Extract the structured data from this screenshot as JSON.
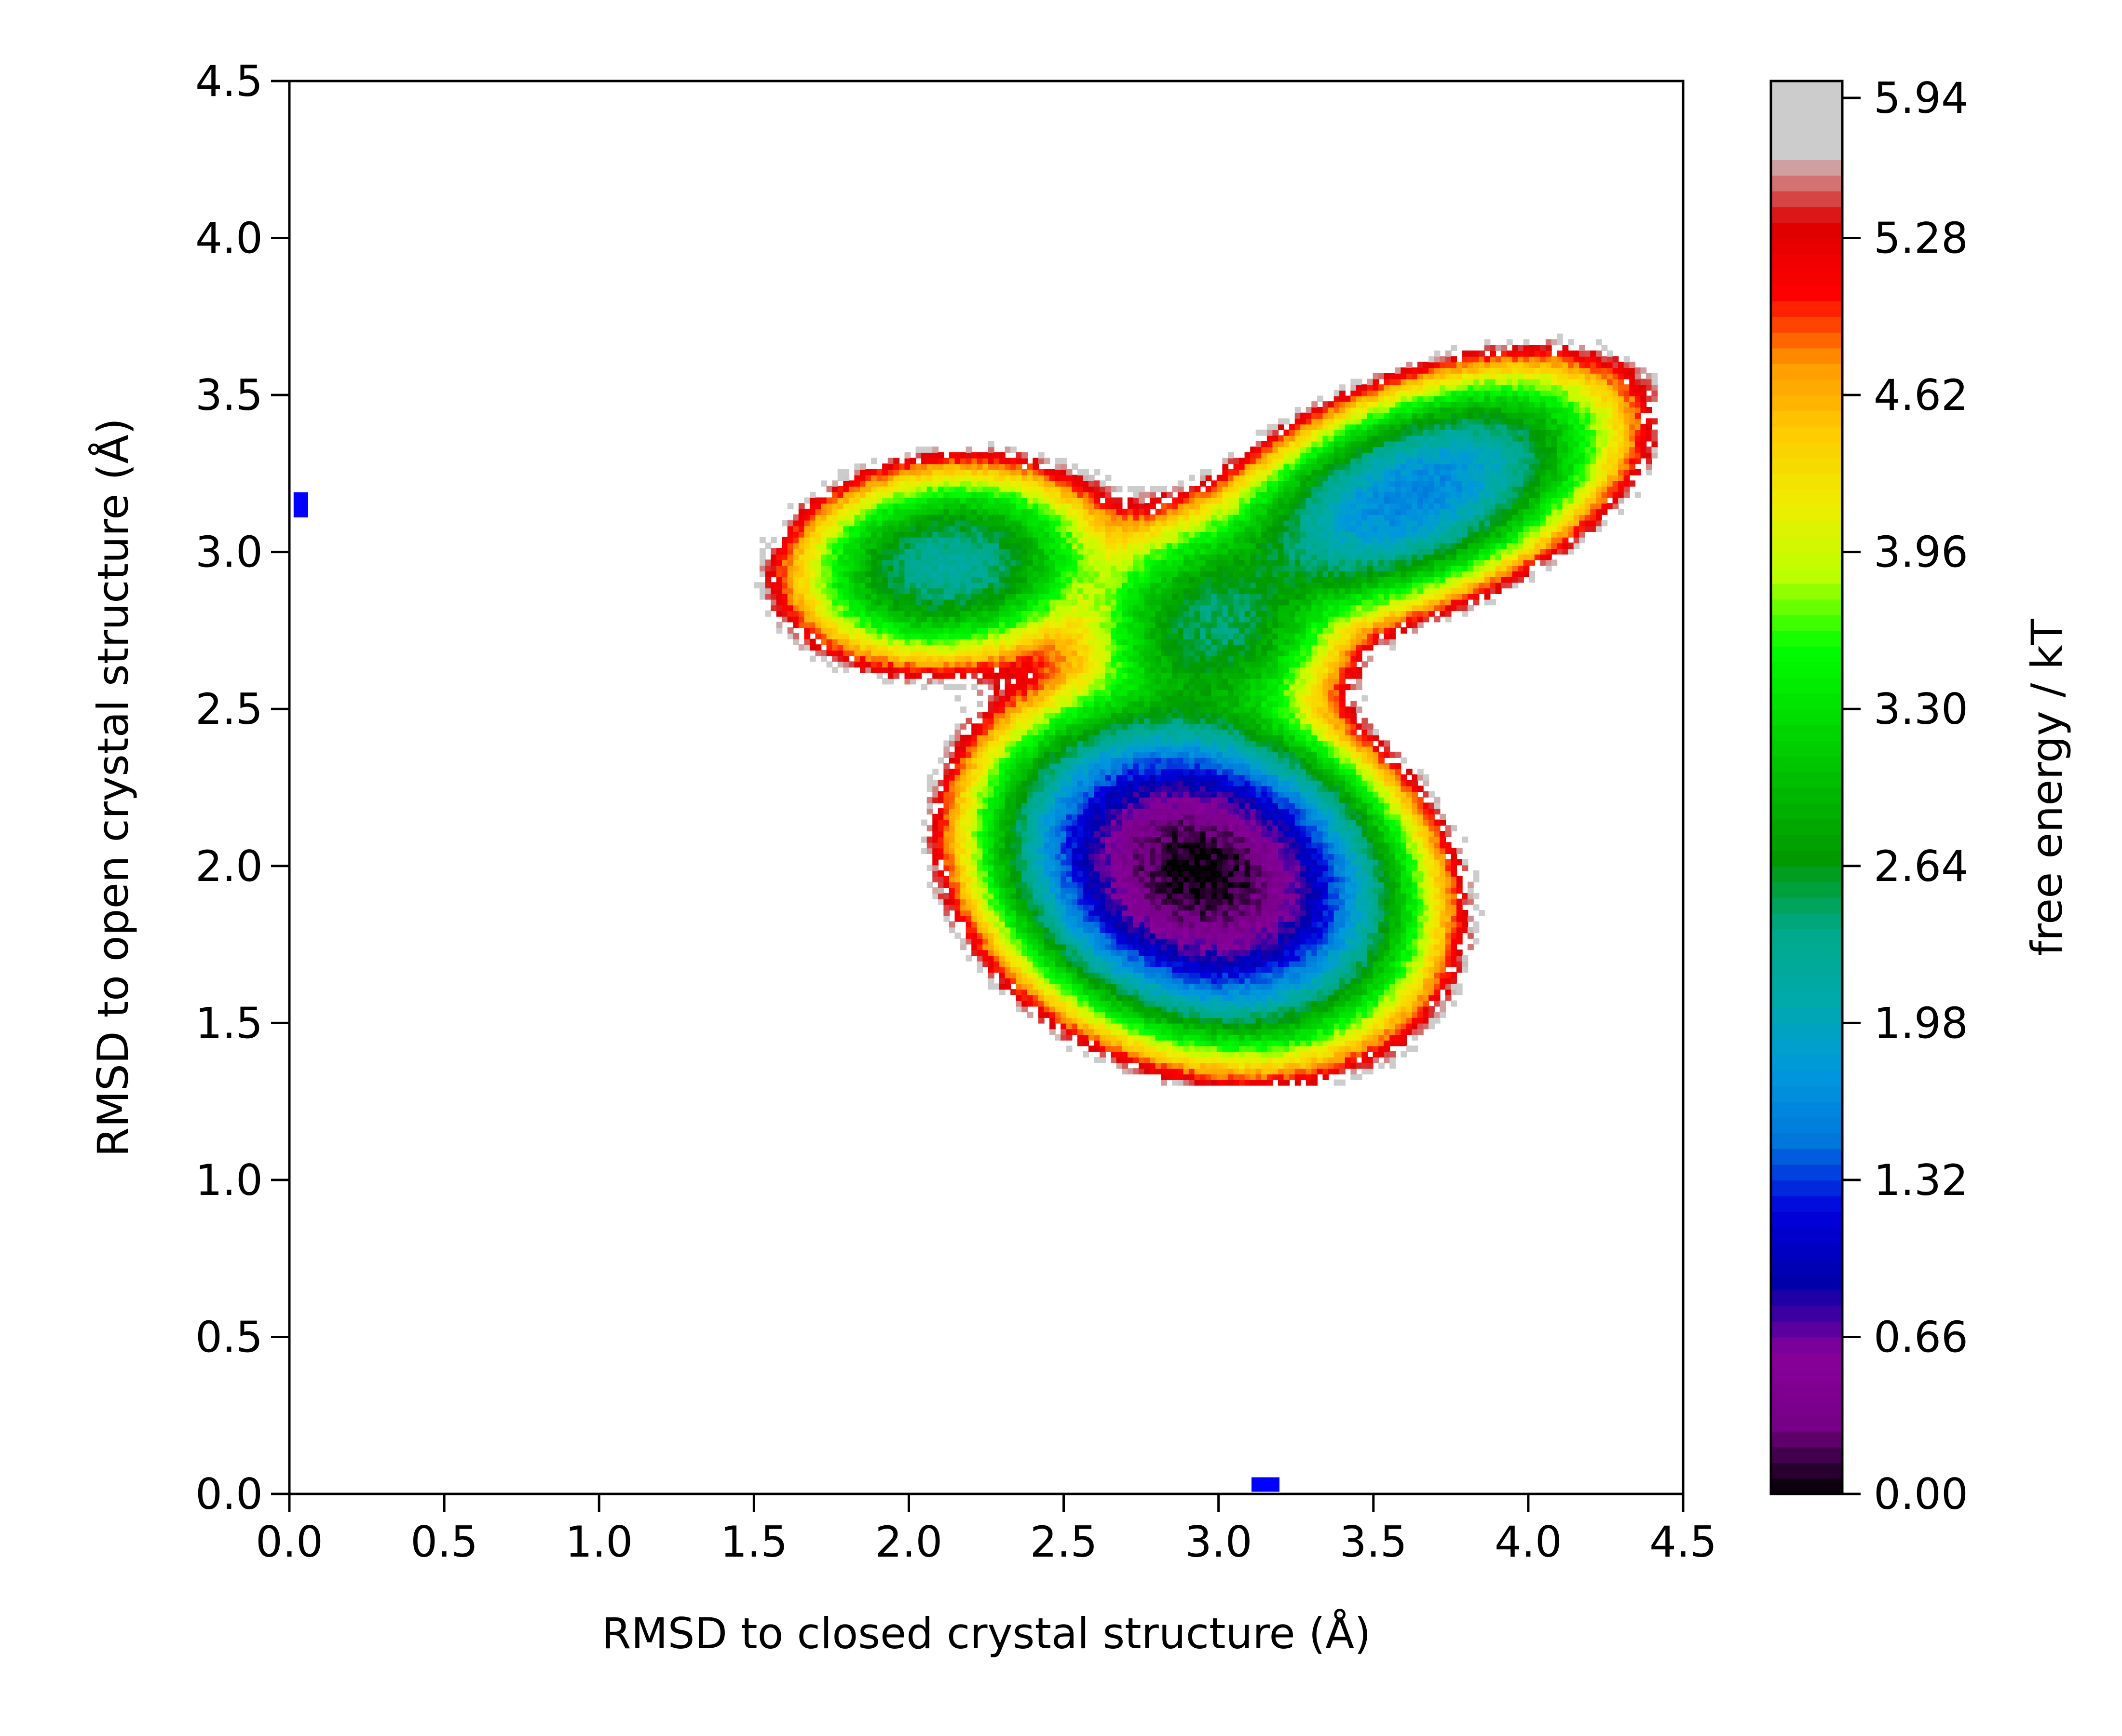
{
  "chart_data": {
    "type": "heatmap",
    "title": "",
    "xlabel": "RMSD to closed crystal structure (Å)",
    "ylabel": "RMSD to open crystal structure (Å)",
    "xlim": [
      0.0,
      4.5
    ],
    "ylim": [
      0.0,
      4.5
    ],
    "x_ticks": [
      "0.0",
      "0.5",
      "1.0",
      "1.5",
      "2.0",
      "2.5",
      "3.0",
      "3.5",
      "4.0",
      "4.5"
    ],
    "y_ticks": [
      "0.0",
      "0.5",
      "1.0",
      "1.5",
      "2.0",
      "2.5",
      "3.0",
      "3.5",
      "4.0",
      "4.5"
    ],
    "grid": false,
    "colorbar": {
      "label": "free energy / kT",
      "range": [
        0.0,
        5.94
      ],
      "ticks": [
        "0.00",
        "0.66",
        "1.32",
        "1.98",
        "2.64",
        "3.30",
        "3.96",
        "4.62",
        "5.28",
        "5.94"
      ],
      "colormap": "nipy_spectral"
    },
    "basins": [
      {
        "x": 2.93,
        "y": 1.97,
        "min_free_energy": 0.0,
        "sx": 0.27,
        "sy": 0.2,
        "angle_deg": -20
      },
      {
        "x": 3.62,
        "y": 3.17,
        "min_free_energy": 1.6,
        "sx": 0.3,
        "sy": 0.14,
        "angle_deg": 22
      },
      {
        "x": 2.12,
        "y": 2.95,
        "min_free_energy": 2.2,
        "sx": 0.23,
        "sy": 0.14,
        "angle_deg": 6
      },
      {
        "x": 2.97,
        "y": 2.75,
        "min_free_energy": 2.5,
        "sx": 0.2,
        "sy": 0.17,
        "angle_deg": 0
      }
    ],
    "reference_markers": [
      {
        "name": "open crystal structure",
        "x": 0.02,
        "y": 3.15,
        "color": "#0000ff"
      },
      {
        "name": "closed crystal structure",
        "x": 3.15,
        "y": 0.01,
        "color": "#0000ff"
      }
    ]
  }
}
